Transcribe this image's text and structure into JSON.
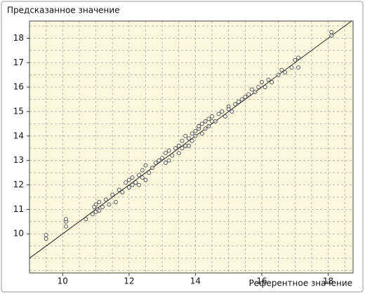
{
  "chart_data": {
    "type": "scatter",
    "title": "Предсказанное значение",
    "x_label": "Референтное значение",
    "xlim": [
      9,
      18.75
    ],
    "ylim": [
      8.4,
      18.7
    ],
    "xticks": [
      10,
      12,
      14,
      16,
      18
    ],
    "yticks": [
      10,
      11,
      12,
      13,
      14,
      15,
      16,
      17,
      18
    ],
    "xgrid": [
      9.5,
      10,
      10.5,
      11,
      11.5,
      12,
      12.5,
      13,
      13.5,
      14,
      14.5,
      15,
      15.5,
      16,
      16.5,
      17,
      17.5,
      18,
      18.5
    ],
    "ygrid": [
      8.5,
      9,
      9.5,
      10,
      10.5,
      11,
      11.5,
      12,
      12.5,
      13,
      13.5,
      14,
      14.5,
      15,
      15.5,
      16,
      16.5,
      17,
      17.5,
      18,
      18.5
    ],
    "grid": true,
    "diagonal": true,
    "background": "#faf7dc",
    "color": "#444",
    "x": [
      9.5,
      9.5,
      10.1,
      10.1,
      10.1,
      10.7,
      10.9,
      10.95,
      11.0,
      11.0,
      11.05,
      11.1,
      11.1,
      11.2,
      11.3,
      11.4,
      11.5,
      11.6,
      11.7,
      11.8,
      11.9,
      12.0,
      12.0,
      12.1,
      12.1,
      12.2,
      12.3,
      12.3,
      12.4,
      12.4,
      12.5,
      12.5,
      12.6,
      12.7,
      12.8,
      12.9,
      13.0,
      13.1,
      13.1,
      13.2,
      13.2,
      13.3,
      13.4,
      13.5,
      13.5,
      13.6,
      13.6,
      13.7,
      13.7,
      13.8,
      13.8,
      13.9,
      13.9,
      14.0,
      14.0,
      14.1,
      14.1,
      14.2,
      14.2,
      14.3,
      14.3,
      14.4,
      14.4,
      14.5,
      14.5,
      14.6,
      14.7,
      14.8,
      14.9,
      15.0,
      15.0,
      15.1,
      15.2,
      15.3,
      15.4,
      15.5,
      15.6,
      15.7,
      15.8,
      15.9,
      16.0,
      16.1,
      16.2,
      16.3,
      16.5,
      16.6,
      16.7,
      16.9,
      17.0,
      17.1,
      17.1,
      18.1,
      18.1
    ],
    "values": [
      9.8,
      9.95,
      10.3,
      10.5,
      10.6,
      10.6,
      10.8,
      11.1,
      10.9,
      11.2,
      11.0,
      11.3,
      10.95,
      11.1,
      11.4,
      11.2,
      11.6,
      11.3,
      11.8,
      11.7,
      12.1,
      11.9,
      12.2,
      12.0,
      12.3,
      12.1,
      12.4,
      12.0,
      12.6,
      12.3,
      12.2,
      12.8,
      12.5,
      12.7,
      12.9,
      13.0,
      13.1,
      12.9,
      13.3,
      13.0,
      13.4,
      13.2,
      13.5,
      13.6,
      13.3,
      13.8,
      13.5,
      13.6,
      14.0,
      13.9,
      13.6,
      14.1,
      13.8,
      14.2,
      14.0,
      14.3,
      14.4,
      14.1,
      14.5,
      14.3,
      14.6,
      14.4,
      14.7,
      14.6,
      14.8,
      14.6,
      14.9,
      15.0,
      14.8,
      15.2,
      15.1,
      15.0,
      15.3,
      15.4,
      15.5,
      15.6,
      15.7,
      15.9,
      15.8,
      16.0,
      16.2,
      16.0,
      16.3,
      16.2,
      16.5,
      16.7,
      16.6,
      16.8,
      17.1,
      17.2,
      16.8,
      18.1,
      18.25
    ]
  }
}
